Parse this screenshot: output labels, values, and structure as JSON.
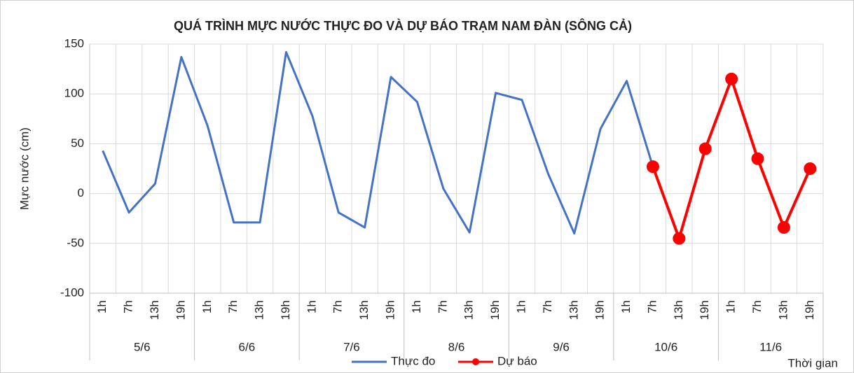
{
  "chart_data": {
    "type": "line",
    "title": "QUÁ TRÌNH MỰC NƯỚC THỰC ĐO VÀ DỰ BÁO TRẠM  NAM ĐÀN (SÔNG CẢ)",
    "y_label": "Mực nước (cm)",
    "x_label": "Thời gian",
    "categories": [
      "1h",
      "7h",
      "13h",
      "19h",
      "1h",
      "7h",
      "13h",
      "19h",
      "1h",
      "7h",
      "13h",
      "19h",
      "1h",
      "7h",
      "13h",
      "19h",
      "1h",
      "7h",
      "13h",
      "19h",
      "1h",
      "7h",
      "13h",
      "19h",
      "1h",
      "7h",
      "13h",
      "19h"
    ],
    "groups": [
      "5/6",
      "6/6",
      "7/6",
      "8/6",
      "9/6",
      "10/6",
      "11/6"
    ],
    "series": [
      {
        "name": "Thực đo",
        "color": "#4472c4",
        "markers": false,
        "values": [
          43,
          -19,
          10,
          137,
          68,
          -29,
          -29,
          142,
          78,
          -19,
          -34,
          117,
          92,
          5,
          -39,
          101,
          94,
          20,
          -40,
          65,
          113,
          27,
          null,
          null,
          null,
          null,
          null,
          null
        ]
      },
      {
        "name": "Dự báo",
        "color": "#ff0000",
        "markers": true,
        "values": [
          null,
          null,
          null,
          null,
          null,
          null,
          null,
          null,
          null,
          null,
          null,
          null,
          null,
          null,
          null,
          null,
          null,
          null,
          null,
          null,
          null,
          27,
          -45,
          45,
          115,
          35,
          -34,
          25
        ]
      }
    ],
    "ylim": [
      -100,
      150
    ],
    "yticks": [
      -100,
      -50,
      0,
      50,
      100,
      150
    ],
    "grid": true
  }
}
